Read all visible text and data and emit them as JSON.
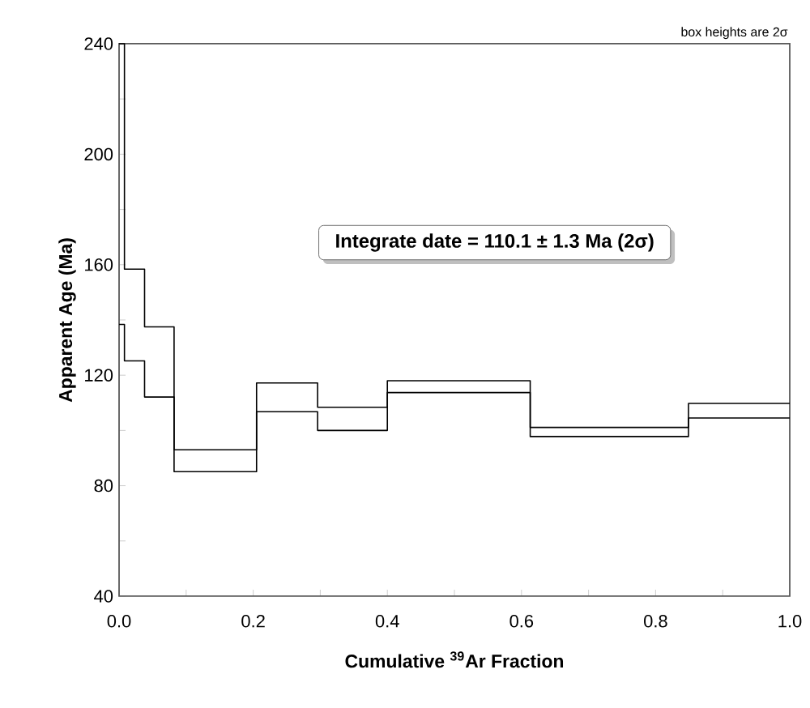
{
  "chart_data": {
    "type": "step",
    "xlabel": "Cumulative $^{39}$Ar Fraction",
    "ylabel": "Apparent Age (Ma)",
    "annotations": [
      "Integrate date = 110.1 ± 1.3 Ma (2σ)",
      "box heights are 2σ"
    ],
    "series": [
      {
        "color": "#000000",
        "x": [
          0,
          0.008,
          0.038,
          0.082,
          0.205,
          0.296,
          0.4,
          0.613,
          0.849,
          1.0
        ],
        "values": [
          240,
          158.4,
          137.5,
          93.0,
          117.2,
          108.4,
          118.0,
          101.1,
          109.8,
          109.8
        ]
      },
      {
        "color": "#000000",
        "x": [
          0,
          0.008,
          0.038,
          0.082,
          0.205,
          0.296,
          0.4,
          0.613,
          0.849,
          1.0
        ],
        "values": [
          138.4,
          125.2,
          112.1,
          85.1,
          106.8,
          100.0,
          113.7,
          97.8,
          104.5,
          104.5
        ]
      }
    ],
    "xlim": [
      0,
      1.0
    ],
    "ylim": [
      40,
      240
    ],
    "xticks": [
      {
        "value": 0,
        "label": "0.0"
      },
      {
        "value": 0.1,
        "label": null
      },
      {
        "value": 0.2,
        "label": "0.2"
      },
      {
        "value": 0.3,
        "label": null
      },
      {
        "value": 0.4,
        "label": "0.4"
      },
      {
        "value": 0.5,
        "label": null
      },
      {
        "value": 0.6,
        "label": "0.6"
      },
      {
        "value": 0.7,
        "label": null
      },
      {
        "value": 0.8,
        "label": "0.8"
      },
      {
        "value": 0.9,
        "label": null
      },
      {
        "value": 1.0,
        "label": "1.0"
      }
    ],
    "yticks": [
      40,
      {
        "value": 60,
        "label": null
      },
      80,
      {
        "value": 100,
        "label": null
      },
      120,
      {
        "value": 140,
        "label": null
      },
      160,
      {
        "value": 180,
        "label": null
      },
      200,
      {
        "value": 220,
        "label": null
      },
      240
    ],
    "grid": false,
    "marker": "none",
    "line_style": "solid"
  }
}
